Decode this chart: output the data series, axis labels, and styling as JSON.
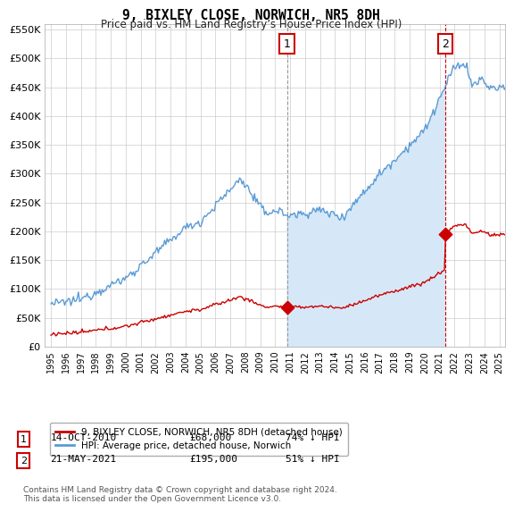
{
  "title": "9, BIXLEY CLOSE, NORWICH, NR5 8DH",
  "subtitle": "Price paid vs. HM Land Registry’s House Price Index (HPI)",
  "legend_line1": "9, BIXLEY CLOSE, NORWICH, NR5 8DH (detached house)",
  "legend_line2": "HPI: Average price, detached house, Norwich",
  "ann1_label": "1",
  "ann1_x": 2010.79,
  "ann1_y": 68000,
  "ann1_date": "14-OCT-2010",
  "ann1_price": "£68,000",
  "ann1_pct": "74% ↓ HPI",
  "ann2_label": "2",
  "ann2_x": 2021.38,
  "ann2_y": 195000,
  "ann2_date": "21-MAY-2021",
  "ann2_price": "£195,000",
  "ann2_pct": "51% ↓ HPI",
  "hpi_color": "#5b9bd5",
  "hpi_fill_color": "#d6e8f7",
  "price_color": "#cc0000",
  "ann_box_color": "#cc0000",
  "ann1_vline_color": "#999999",
  "ann2_vline_color": "#cc0000",
  "ylim": [
    0,
    560000
  ],
  "yticks": [
    0,
    50000,
    100000,
    150000,
    200000,
    250000,
    300000,
    350000,
    400000,
    450000,
    500000,
    550000
  ],
  "xlim_left": 1994.6,
  "xlim_right": 2025.4,
  "background_color": "#ffffff",
  "grid_color": "#cccccc",
  "footer": "Contains HM Land Registry data © Crown copyright and database right 2024.\nThis data is licensed under the Open Government Licence v3.0."
}
